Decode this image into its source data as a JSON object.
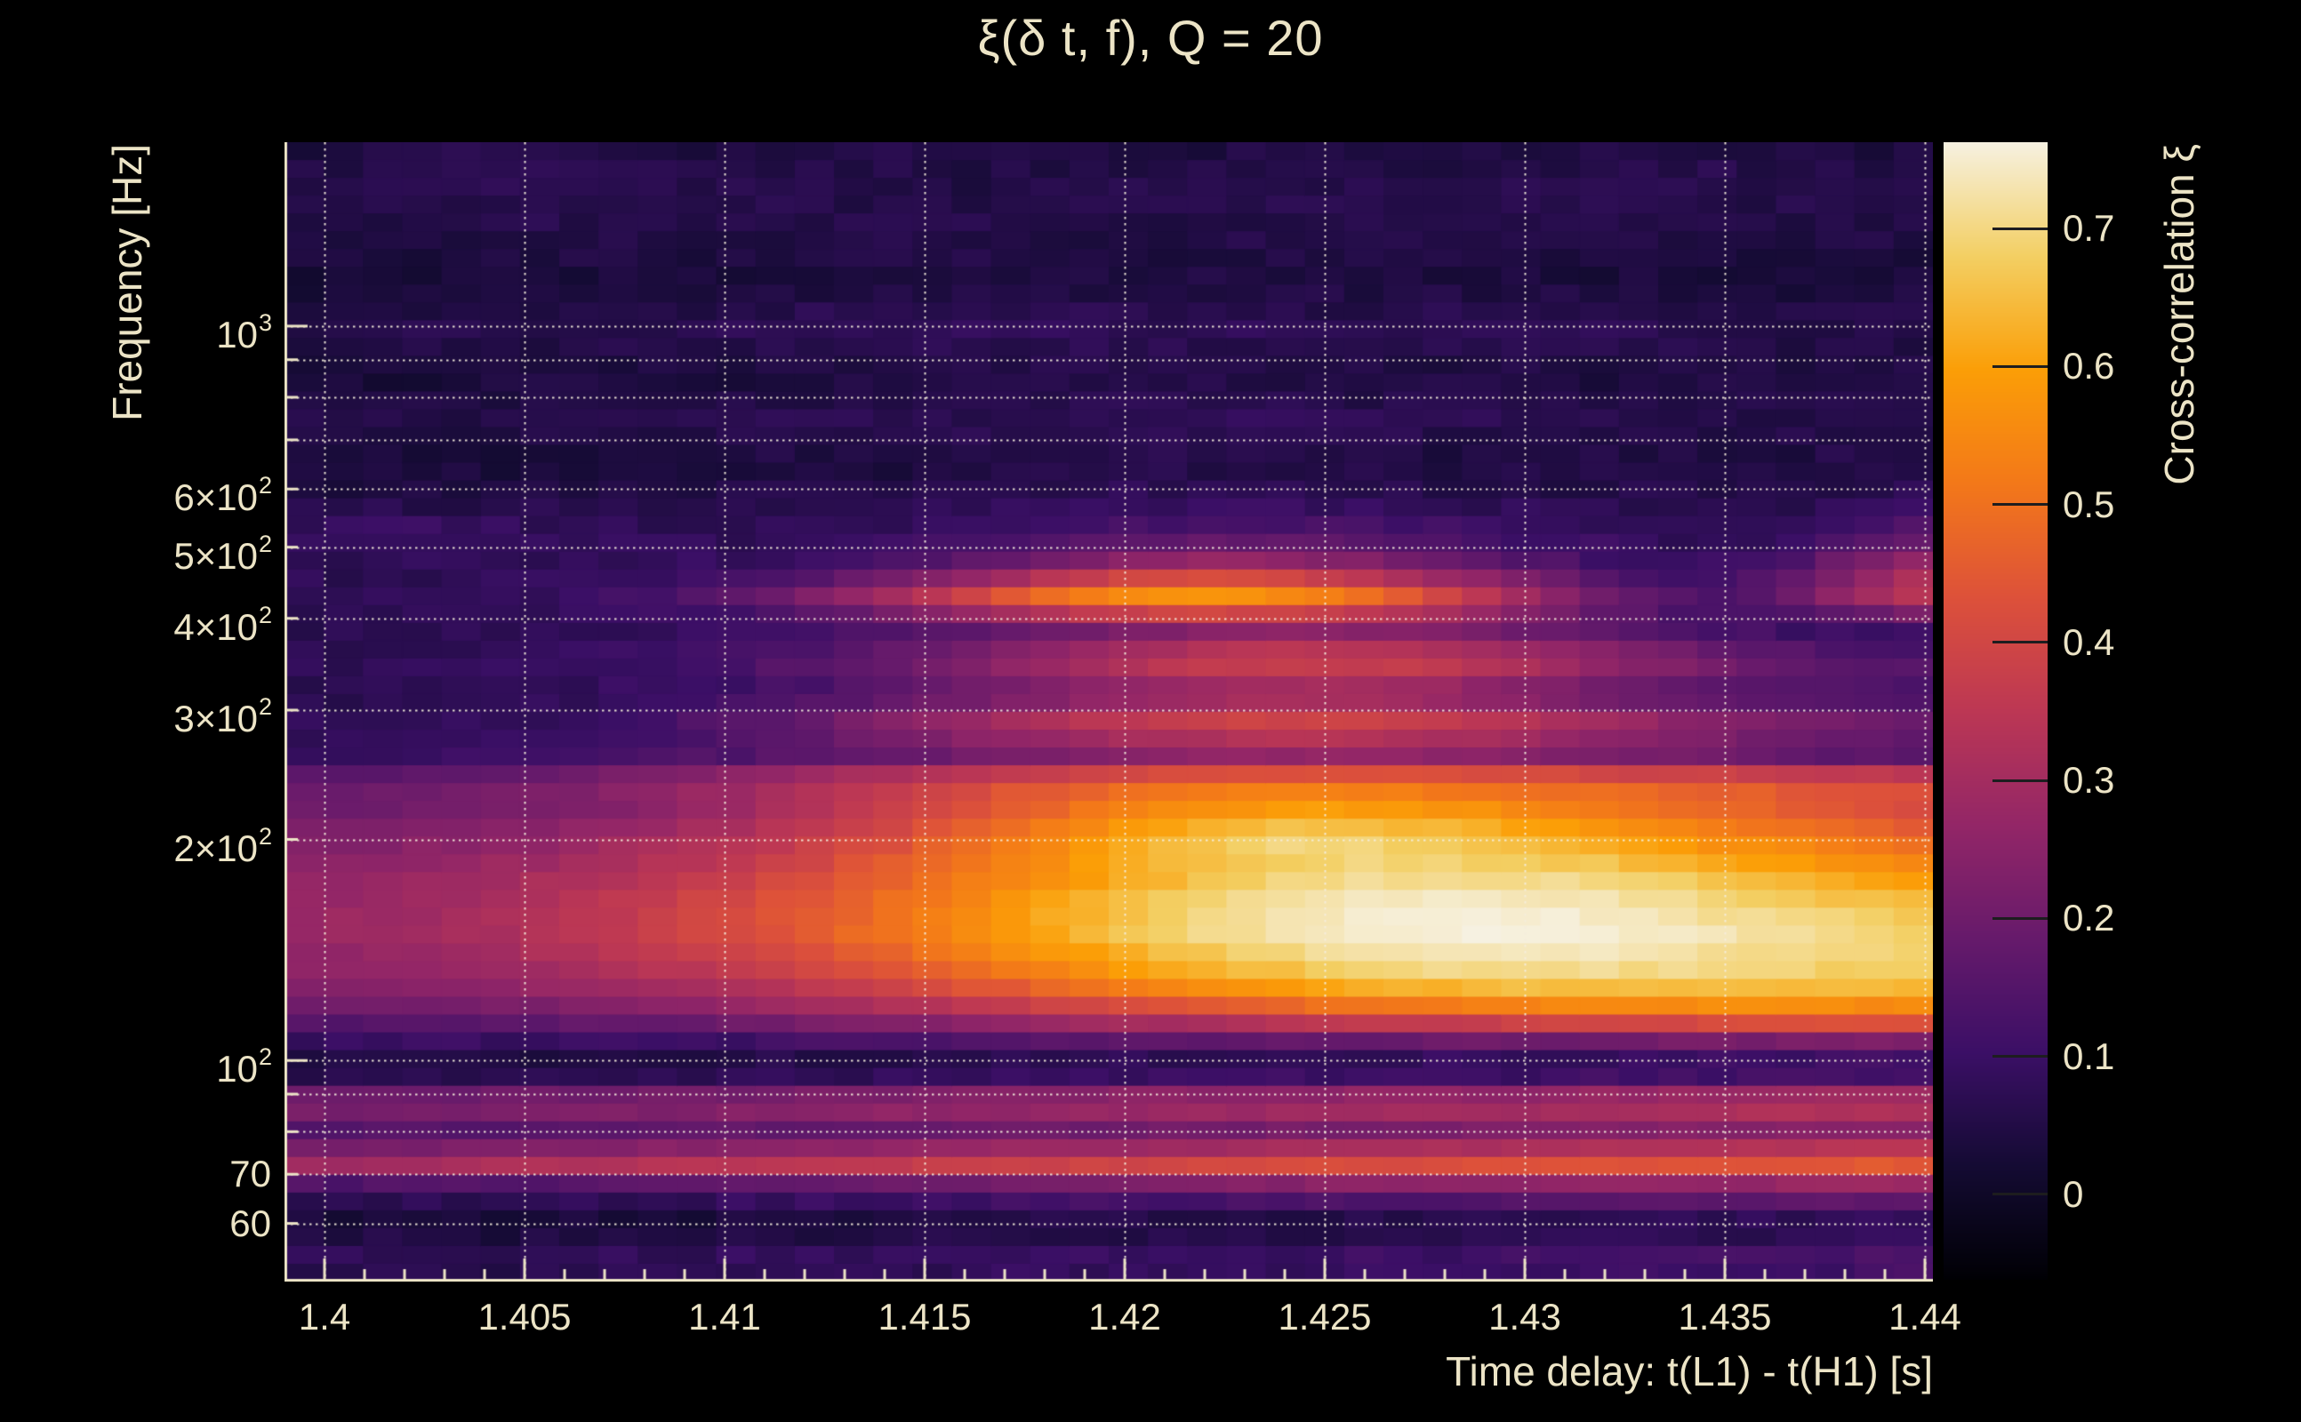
{
  "colors": {
    "background": "#000000",
    "text": "#ECE4C6",
    "grid": "#F2ECD8",
    "frame": "#ECE4C6",
    "colorbar_tick": "#1D1D1F"
  },
  "chart_data": {
    "type": "heatmap",
    "title": "ξ(δ t, f), Q = 20",
    "xlabel": "Time delay: t(L1) - t(H1) [s]",
    "ylabel": "Frequency [Hz]",
    "colorbar_label": "Cross-correlation ξ",
    "xlim": [
      1.399,
      1.4402
    ],
    "x_ticks": [
      {
        "v": 1.4,
        "label": "1.4"
      },
      {
        "v": 1.405,
        "label": "1.405"
      },
      {
        "v": 1.41,
        "label": "1.41"
      },
      {
        "v": 1.415,
        "label": "1.415"
      },
      {
        "v": 1.42,
        "label": "1.42"
      },
      {
        "v": 1.425,
        "label": "1.425"
      },
      {
        "v": 1.43,
        "label": "1.43"
      },
      {
        "v": 1.435,
        "label": "1.435"
      },
      {
        "v": 1.44,
        "label": "1.44"
      }
    ],
    "x_minor_step": 0.001,
    "y_scale": "log",
    "ylim": [
      50,
      1780
    ],
    "y_ticks": [
      {
        "v": 1000,
        "base": "10",
        "exp": "3"
      },
      {
        "v": 600,
        "base": "6×10",
        "exp": "2"
      },
      {
        "v": 500,
        "base": "5×10",
        "exp": "2"
      },
      {
        "v": 400,
        "base": "4×10",
        "exp": "2"
      },
      {
        "v": 300,
        "base": "3×10",
        "exp": "2"
      },
      {
        "v": 200,
        "base": "2×10",
        "exp": "2"
      },
      {
        "v": 100,
        "base": "10",
        "exp": "2"
      },
      {
        "v": 70,
        "base": "70",
        "exp": ""
      },
      {
        "v": 60,
        "base": "60",
        "exp": ""
      }
    ],
    "y_grid_values": [
      60,
      70,
      80,
      90,
      100,
      200,
      300,
      400,
      500,
      600,
      700,
      800,
      900,
      1000
    ],
    "grid": true,
    "colorbar": {
      "vmin": -0.062,
      "vmax": 0.7625,
      "ticks": [
        0,
        0.1,
        0.2,
        0.3,
        0.4,
        0.5,
        0.6,
        0.7
      ],
      "tick_labels": [
        "0",
        "0.1",
        "0.2",
        "0.3",
        "0.4",
        "0.5",
        "0.6",
        "0.7"
      ]
    },
    "colormap_stops": [
      "#000004",
      "#140b33",
      "#3b0f66",
      "#661a6b",
      "#932667",
      "#bc3754",
      "#dd513a",
      "#f37819",
      "#fb9e07",
      "#f3cf63",
      "#f6f1e1"
    ],
    "t": [
      1.4,
      1.402,
      1.404,
      1.406,
      1.408,
      1.41,
      1.412,
      1.414,
      1.416,
      1.418,
      1.42,
      1.422,
      1.424,
      1.426,
      1.428,
      1.43,
      1.432,
      1.434,
      1.436,
      1.438,
      1.44
    ],
    "rows": [
      {
        "f": 52,
        "xi": [
          0.07,
          0.07,
          0.06,
          0.07,
          0.07,
          0.08,
          0.07,
          0.08,
          0.08,
          0.09,
          0.08,
          0.09,
          0.09,
          0.1,
          0.09,
          0.1,
          0.1,
          0.11,
          0.1,
          0.11,
          0.12
        ]
      },
      {
        "f": 56,
        "xi": [
          0.09,
          0.08,
          0.08,
          0.09,
          0.08,
          0.09,
          0.09,
          0.1,
          0.09,
          0.1,
          0.1,
          0.11,
          0.1,
          0.11,
          0.11,
          0.12,
          0.11,
          0.12,
          0.12,
          0.13,
          0.13
        ]
      },
      {
        "f": 59,
        "xi": [
          0.01,
          0.01,
          0.0,
          0.01,
          0.01,
          0.01,
          0.01,
          0.02,
          0.01,
          0.02,
          0.02,
          0.02,
          0.02,
          0.03,
          0.02,
          0.03,
          0.03,
          0.03,
          0.03,
          0.04,
          0.04
        ]
      },
      {
        "f": 63,
        "xi": [
          0.06,
          0.06,
          0.05,
          0.06,
          0.06,
          0.07,
          0.07,
          0.08,
          0.08,
          0.09,
          0.09,
          0.1,
          0.1,
          0.11,
          0.11,
          0.12,
          0.12,
          0.13,
          0.13,
          0.14,
          0.14
        ]
      },
      {
        "f": 67,
        "xi": [
          0.1,
          0.1,
          0.11,
          0.11,
          0.12,
          0.13,
          0.14,
          0.15,
          0.16,
          0.17,
          0.18,
          0.19,
          0.2,
          0.21,
          0.21,
          0.22,
          0.22,
          0.23,
          0.23,
          0.24,
          0.24
        ]
      },
      {
        "f": 72,
        "xi": [
          0.3,
          0.31,
          0.32,
          0.33,
          0.34,
          0.35,
          0.36,
          0.37,
          0.38,
          0.39,
          0.4,
          0.41,
          0.42,
          0.42,
          0.43,
          0.43,
          0.44,
          0.44,
          0.44,
          0.45,
          0.45
        ]
      },
      {
        "f": 77,
        "xi": [
          0.2,
          0.2,
          0.21,
          0.21,
          0.22,
          0.23,
          0.23,
          0.24,
          0.25,
          0.26,
          0.26,
          0.27,
          0.28,
          0.28,
          0.29,
          0.29,
          0.3,
          0.3,
          0.31,
          0.31,
          0.32
        ]
      },
      {
        "f": 82,
        "xi": [
          0.13,
          0.13,
          0.13,
          0.14,
          0.14,
          0.15,
          0.15,
          0.16,
          0.16,
          0.17,
          0.17,
          0.18,
          0.18,
          0.19,
          0.19,
          0.2,
          0.2,
          0.21,
          0.21,
          0.22,
          0.22
        ]
      },
      {
        "f": 87,
        "xi": [
          0.27,
          0.27,
          0.28,
          0.28,
          0.29,
          0.3,
          0.31,
          0.32,
          0.33,
          0.34,
          0.35,
          0.35,
          0.36,
          0.36,
          0.37,
          0.37,
          0.38,
          0.38,
          0.39,
          0.39,
          0.4
        ]
      },
      {
        "f": 92,
        "xi": [
          0.14,
          0.14,
          0.14,
          0.15,
          0.15,
          0.15,
          0.16,
          0.16,
          0.17,
          0.17,
          0.18,
          0.18,
          0.18,
          0.19,
          0.19,
          0.19,
          0.2,
          0.2,
          0.2,
          0.21,
          0.21
        ]
      },
      {
        "f": 97,
        "xi": [
          0.02,
          0.02,
          0.02,
          0.02,
          0.03,
          0.03,
          0.03,
          0.03,
          0.04,
          0.04,
          0.04,
          0.04,
          0.05,
          0.05,
          0.05,
          0.05,
          0.06,
          0.06,
          0.06,
          0.06,
          0.07
        ]
      },
      {
        "f": 104,
        "xi": [
          0.07,
          0.07,
          0.07,
          0.08,
          0.08,
          0.08,
          0.09,
          0.09,
          0.1,
          0.1,
          0.11,
          0.11,
          0.12,
          0.12,
          0.13,
          0.13,
          0.13,
          0.14,
          0.14,
          0.15,
          0.15
        ]
      },
      {
        "f": 112,
        "xi": [
          0.15,
          0.15,
          0.16,
          0.17,
          0.18,
          0.19,
          0.21,
          0.23,
          0.25,
          0.27,
          0.29,
          0.31,
          0.33,
          0.35,
          0.36,
          0.38,
          0.39,
          0.4,
          0.41,
          0.42,
          0.42
        ]
      },
      {
        "f": 122,
        "xi": [
          0.22,
          0.23,
          0.24,
          0.26,
          0.28,
          0.3,
          0.33,
          0.36,
          0.4,
          0.44,
          0.48,
          0.52,
          0.55,
          0.58,
          0.6,
          0.62,
          0.63,
          0.63,
          0.63,
          0.62,
          0.61
        ]
      },
      {
        "f": 134,
        "xi": [
          0.26,
          0.27,
          0.29,
          0.31,
          0.34,
          0.37,
          0.41,
          0.45,
          0.5,
          0.55,
          0.6,
          0.64,
          0.67,
          0.7,
          0.71,
          0.72,
          0.72,
          0.71,
          0.7,
          0.69,
          0.68
        ]
      },
      {
        "f": 148,
        "xi": [
          0.28,
          0.29,
          0.31,
          0.34,
          0.37,
          0.41,
          0.45,
          0.5,
          0.55,
          0.61,
          0.66,
          0.7,
          0.73,
          0.75,
          0.76,
          0.76,
          0.75,
          0.74,
          0.72,
          0.71,
          0.69
        ]
      },
      {
        "f": 162,
        "xi": [
          0.28,
          0.29,
          0.31,
          0.34,
          0.37,
          0.41,
          0.45,
          0.5,
          0.55,
          0.61,
          0.66,
          0.7,
          0.73,
          0.75,
          0.76,
          0.75,
          0.74,
          0.72,
          0.7,
          0.67,
          0.65
        ]
      },
      {
        "f": 180,
        "xi": [
          0.26,
          0.27,
          0.29,
          0.31,
          0.34,
          0.37,
          0.41,
          0.46,
          0.51,
          0.56,
          0.61,
          0.65,
          0.68,
          0.7,
          0.7,
          0.7,
          0.68,
          0.66,
          0.63,
          0.6,
          0.58
        ]
      },
      {
        "f": 200,
        "xi": [
          0.23,
          0.24,
          0.25,
          0.27,
          0.3,
          0.33,
          0.37,
          0.42,
          0.48,
          0.55,
          0.62,
          0.67,
          0.7,
          0.69,
          0.67,
          0.64,
          0.61,
          0.57,
          0.54,
          0.51,
          0.48
        ]
      },
      {
        "f": 218,
        "xi": [
          0.2,
          0.21,
          0.22,
          0.23,
          0.25,
          0.28,
          0.32,
          0.37,
          0.42,
          0.48,
          0.54,
          0.58,
          0.6,
          0.6,
          0.58,
          0.56,
          0.53,
          0.5,
          0.47,
          0.44,
          0.42
        ]
      },
      {
        "f": 240,
        "xi": [
          0.18,
          0.19,
          0.21,
          0.23,
          0.26,
          0.29,
          0.33,
          0.37,
          0.41,
          0.44,
          0.47,
          0.49,
          0.5,
          0.5,
          0.49,
          0.48,
          0.47,
          0.46,
          0.45,
          0.44,
          0.43
        ]
      },
      {
        "f": 260,
        "xi": [
          0.1,
          0.1,
          0.11,
          0.12,
          0.13,
          0.14,
          0.16,
          0.18,
          0.2,
          0.22,
          0.24,
          0.25,
          0.26,
          0.26,
          0.25,
          0.24,
          0.22,
          0.2,
          0.18,
          0.16,
          0.15
        ]
      },
      {
        "f": 288,
        "xi": [
          0.08,
          0.08,
          0.09,
          0.1,
          0.12,
          0.15,
          0.19,
          0.24,
          0.29,
          0.33,
          0.37,
          0.39,
          0.4,
          0.39,
          0.37,
          0.34,
          0.3,
          0.26,
          0.23,
          0.21,
          0.2
        ]
      },
      {
        "f": 315,
        "xi": [
          0.07,
          0.07,
          0.07,
          0.08,
          0.09,
          0.1,
          0.12,
          0.15,
          0.18,
          0.21,
          0.24,
          0.26,
          0.27,
          0.26,
          0.24,
          0.21,
          0.18,
          0.16,
          0.14,
          0.13,
          0.13
        ]
      },
      {
        "f": 350,
        "xi": [
          0.08,
          0.08,
          0.09,
          0.1,
          0.11,
          0.13,
          0.16,
          0.2,
          0.25,
          0.3,
          0.35,
          0.38,
          0.4,
          0.4,
          0.38,
          0.34,
          0.29,
          0.24,
          0.2,
          0.17,
          0.15
        ]
      },
      {
        "f": 385,
        "xi": [
          0.07,
          0.07,
          0.07,
          0.08,
          0.08,
          0.09,
          0.11,
          0.13,
          0.16,
          0.19,
          0.22,
          0.24,
          0.25,
          0.24,
          0.22,
          0.19,
          0.16,
          0.13,
          0.11,
          0.1,
          0.1
        ]
      },
      {
        "f": 430,
        "xi": [
          0.08,
          0.08,
          0.09,
          0.1,
          0.12,
          0.16,
          0.22,
          0.3,
          0.4,
          0.5,
          0.56,
          0.58,
          0.56,
          0.5,
          0.4,
          0.3,
          0.2,
          0.14,
          0.16,
          0.28,
          0.36
        ]
      },
      {
        "f": 470,
        "xi": [
          0.07,
          0.07,
          0.07,
          0.08,
          0.08,
          0.09,
          0.11,
          0.14,
          0.18,
          0.23,
          0.28,
          0.3,
          0.29,
          0.26,
          0.21,
          0.16,
          0.12,
          0.1,
          0.12,
          0.22,
          0.3
        ]
      },
      {
        "f": 520,
        "xi": [
          0.1,
          0.11,
          0.1,
          0.09,
          0.08,
          0.08,
          0.08,
          0.09,
          0.1,
          0.12,
          0.13,
          0.14,
          0.14,
          0.13,
          0.12,
          0.1,
          0.09,
          0.08,
          0.08,
          0.12,
          0.16
        ]
      },
      {
        "f": 580,
        "xi": [
          0.05,
          0.05,
          0.05,
          0.05,
          0.05,
          0.06,
          0.06,
          0.06,
          0.07,
          0.07,
          0.08,
          0.08,
          0.08,
          0.08,
          0.07,
          0.07,
          0.06,
          0.06,
          0.06,
          0.07,
          0.08
        ]
      },
      {
        "f": 650,
        "xi": [
          0.03,
          0.03,
          0.03,
          0.03,
          0.04,
          0.04,
          0.04,
          0.04,
          0.05,
          0.05,
          0.05,
          0.05,
          0.05,
          0.05,
          0.04,
          0.04,
          0.04,
          0.04,
          0.04,
          0.05,
          0.05
        ]
      },
      {
        "f": 740,
        "xi": [
          0.06,
          0.05,
          0.05,
          0.06,
          0.06,
          0.06,
          0.07,
          0.07,
          0.07,
          0.07,
          0.08,
          0.08,
          0.08,
          0.07,
          0.07,
          0.07,
          0.06,
          0.06,
          0.06,
          0.06,
          0.06
        ]
      },
      {
        "f": 860,
        "xi": [
          0.03,
          0.03,
          0.03,
          0.04,
          0.04,
          0.04,
          0.04,
          0.04,
          0.05,
          0.05,
          0.05,
          0.05,
          0.05,
          0.04,
          0.04,
          0.04,
          0.04,
          0.04,
          0.04,
          0.04,
          0.04
        ]
      },
      {
        "f": 1000,
        "xi": [
          0.06,
          0.06,
          0.06,
          0.07,
          0.07,
          0.07,
          0.08,
          0.08,
          0.08,
          0.08,
          0.08,
          0.08,
          0.07,
          0.07,
          0.07,
          0.07,
          0.07,
          0.07,
          0.06,
          0.06,
          0.06
        ]
      },
      {
        "f": 1150,
        "xi": [
          0.02,
          0.02,
          0.02,
          0.03,
          0.03,
          0.03,
          0.03,
          0.04,
          0.04,
          0.04,
          0.04,
          0.04,
          0.04,
          0.04,
          0.04,
          0.04,
          0.03,
          0.03,
          0.03,
          0.03,
          0.03
        ]
      },
      {
        "f": 1350,
        "xi": [
          0.05,
          0.05,
          0.06,
          0.06,
          0.05,
          0.05,
          0.05,
          0.06,
          0.06,
          0.05,
          0.05,
          0.05,
          0.06,
          0.06,
          0.05,
          0.05,
          0.05,
          0.06,
          0.05,
          0.05,
          0.05
        ]
      },
      {
        "f": 1550,
        "xi": [
          0.06,
          0.06,
          0.07,
          0.06,
          0.06,
          0.06,
          0.06,
          0.06,
          0.05,
          0.05,
          0.06,
          0.06,
          0.06,
          0.06,
          0.06,
          0.06,
          0.07,
          0.07,
          0.06,
          0.06,
          0.06
        ]
      },
      {
        "f": 1760,
        "xi": [
          0.04,
          0.05,
          0.06,
          0.06,
          0.05,
          0.04,
          0.04,
          0.05,
          0.05,
          0.04,
          0.04,
          0.04,
          0.05,
          0.05,
          0.04,
          0.04,
          0.05,
          0.05,
          0.05,
          0.04,
          0.04
        ]
      }
    ]
  }
}
